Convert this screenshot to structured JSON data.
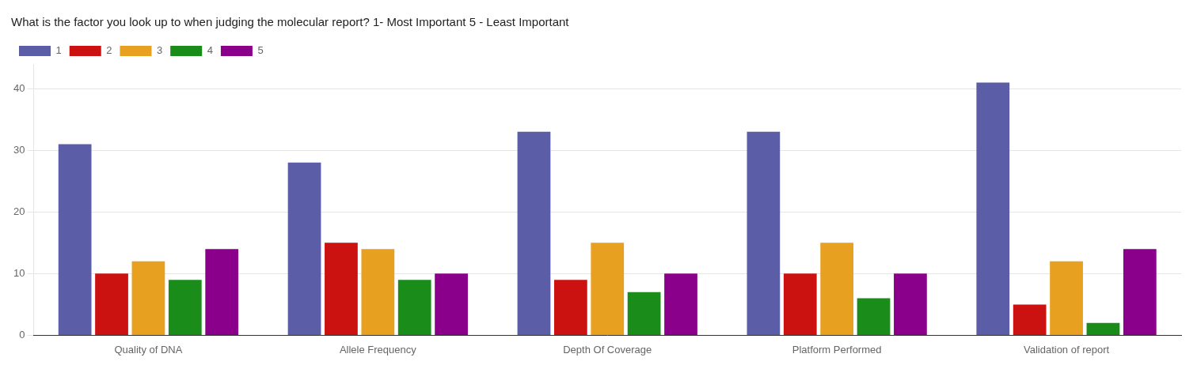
{
  "chart_data": {
    "type": "bar",
    "title": "What is the factor you look up to when judging the molecular report? 1- Most Important 5 - Least Important",
    "categories": [
      "Quality of DNA",
      "Allele Frequency",
      "Depth Of Coverage",
      "Platform Performed",
      "Validation of report"
    ],
    "series": [
      {
        "name": "1",
        "color": "#5B5EA6",
        "values": [
          31,
          28,
          33,
          33,
          41
        ]
      },
      {
        "name": "2",
        "color": "#CC1111",
        "values": [
          10,
          15,
          9,
          10,
          5
        ]
      },
      {
        "name": "3",
        "color": "#E8A020",
        "values": [
          12,
          14,
          15,
          15,
          12
        ]
      },
      {
        "name": "4",
        "color": "#1A8C1A",
        "values": [
          9,
          9,
          7,
          6,
          2
        ]
      },
      {
        "name": "5",
        "color": "#8B008B",
        "values": [
          14,
          10,
          10,
          10,
          14
        ]
      }
    ],
    "ylim": [
      0,
      44
    ],
    "yticks": [
      0,
      10,
      20,
      30,
      40
    ],
    "grid": true,
    "legend": "upper left"
  }
}
